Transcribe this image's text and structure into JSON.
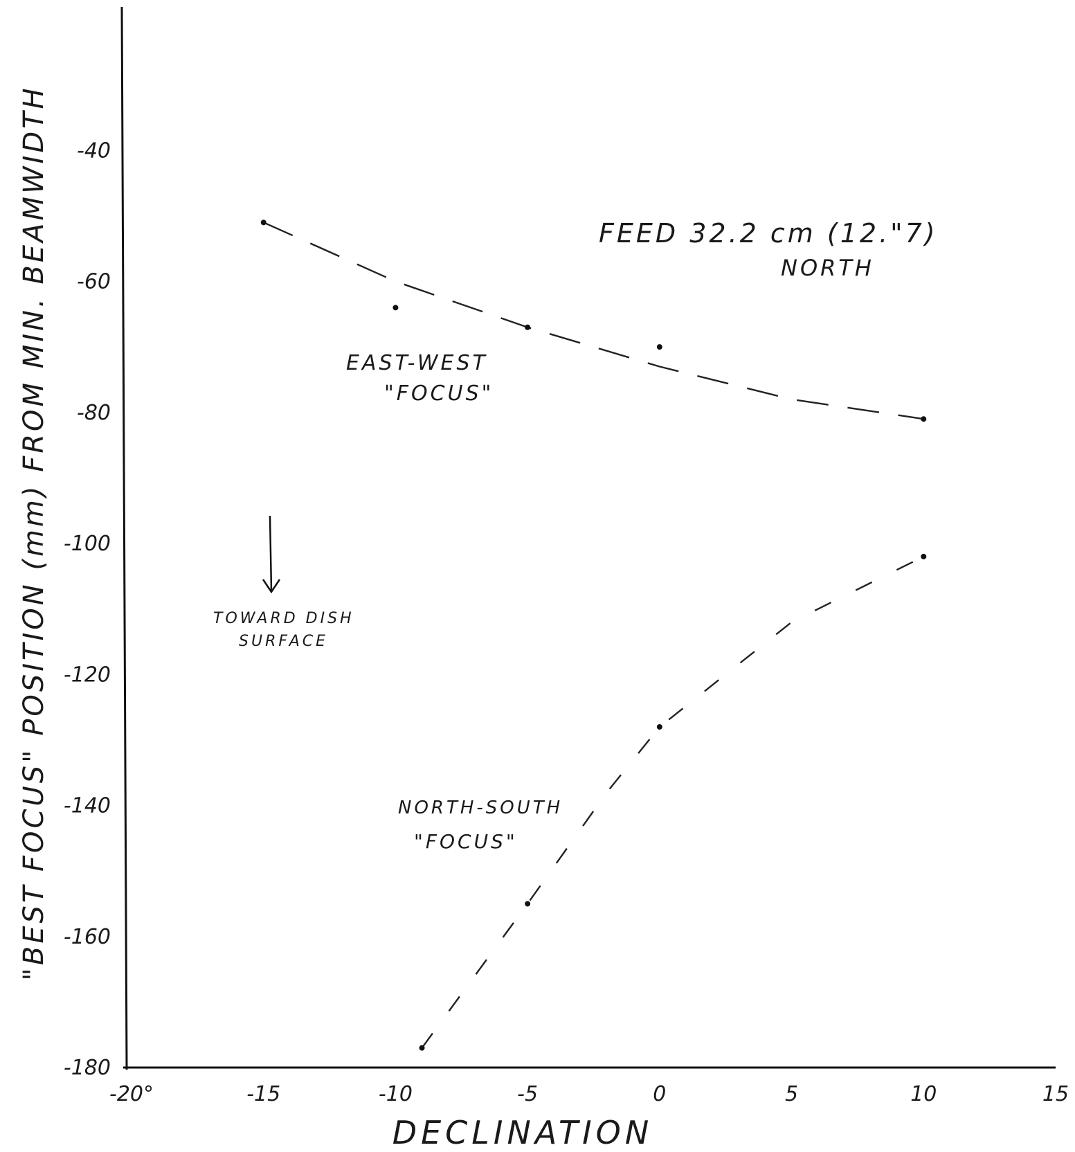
{
  "chart_data": {
    "type": "scatter",
    "xlabel": "DECLINATION",
    "ylabel": "\"BEST FOCUS\" POSITION (mm) FROM MIN. BEAMWIDTH",
    "xlim": [
      -20,
      15
    ],
    "ylim": [
      -180,
      -20
    ],
    "x_ticks": [
      -20,
      -15,
      -10,
      -5,
      0,
      5,
      10,
      15
    ],
    "x_tick_labels": [
      "-20°",
      "-15",
      "-10",
      "-5",
      "0",
      "5",
      "10",
      "15"
    ],
    "y_ticks": [
      -40,
      -60,
      -80,
      -100,
      -120,
      -140,
      -160,
      -180
    ],
    "y_tick_labels": [
      "-40",
      "-60",
      "-80",
      "-100",
      "-120",
      "-140",
      "-160",
      "-180"
    ],
    "grid": false,
    "annotations": {
      "title_line1": "FEED 32.2 cm (12.\"7)",
      "title_line2": "NORTH",
      "arrow_label_line1": "TOWARD DISH",
      "arrow_label_line2": "SURFACE"
    },
    "series": [
      {
        "name": "EAST-WEST \"FOCUS\"",
        "line_style": "dashed",
        "points": [
          {
            "x": -15,
            "y": -51
          },
          {
            "x": -10,
            "y": -64
          },
          {
            "x": -5,
            "y": -67
          },
          {
            "x": 0,
            "y": -70
          },
          {
            "x": 10,
            "y": -81
          }
        ],
        "trend": [
          {
            "x": -15,
            "y": -51
          },
          {
            "x": -10,
            "y": -60
          },
          {
            "x": -5,
            "y": -67
          },
          {
            "x": 0,
            "y": -73
          },
          {
            "x": 5,
            "y": -78
          },
          {
            "x": 10,
            "y": -81
          }
        ]
      },
      {
        "name": "NORTH-SOUTH \"FOCUS\"",
        "line_style": "dashed-sparse",
        "points": [
          {
            "x": -9,
            "y": -177
          },
          {
            "x": -5,
            "y": -155
          },
          {
            "x": 0,
            "y": -128
          },
          {
            "x": 10,
            "y": -102
          }
        ],
        "trend": [
          {
            "x": -9,
            "y": -177
          },
          {
            "x": -5,
            "y": -155
          },
          {
            "x": -2,
            "y": -138
          },
          {
            "x": 0,
            "y": -128
          },
          {
            "x": 5,
            "y": -112
          },
          {
            "x": 10,
            "y": -102
          }
        ]
      }
    ]
  }
}
